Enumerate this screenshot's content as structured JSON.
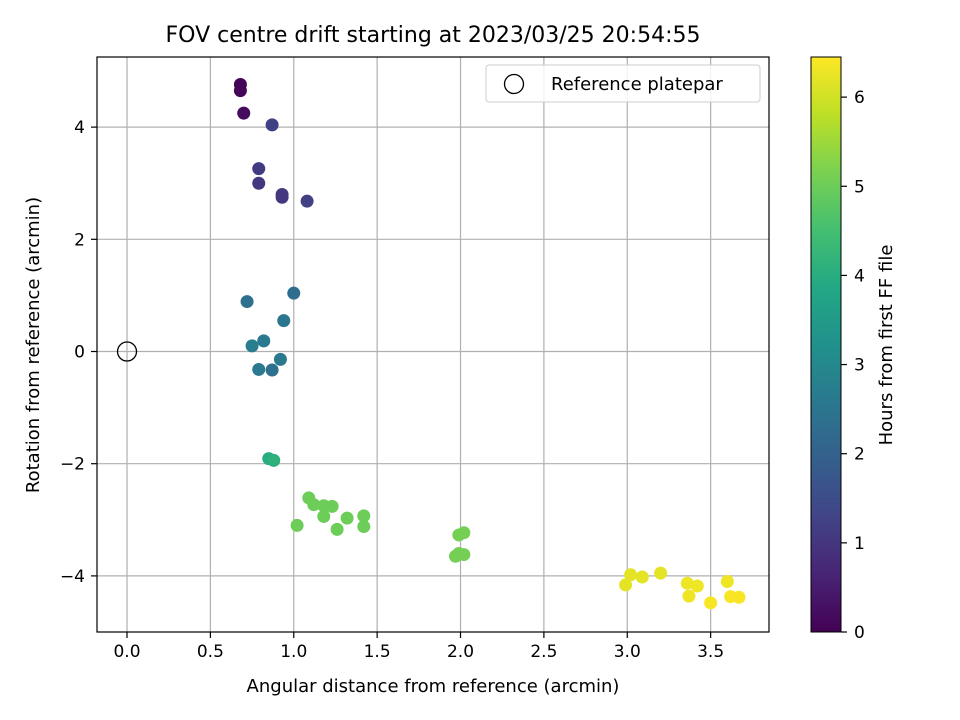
{
  "chart_data": {
    "type": "scatter",
    "title": "FOV centre drift starting at 2023/03/25 20:54:55",
    "xlabel": "Angular distance from reference (arcmin)",
    "ylabel": "Rotation from reference (arcmin)",
    "xlim": [
      -0.18,
      3.85
    ],
    "ylim": [
      -5.0,
      5.25
    ],
    "xticks": [
      "0.0",
      "0.5",
      "1.0",
      "1.5",
      "2.0",
      "2.5",
      "3.0",
      "3.5"
    ],
    "yticks": [
      "−4",
      "−2",
      "0",
      "2",
      "4"
    ],
    "grid": true,
    "legend_position": "top-right",
    "reference": {
      "label": "Reference platepar",
      "x": 0.0,
      "y": 0.0
    },
    "colorbar": {
      "label": "Hours from first FF file",
      "range": [
        0,
        6.45
      ],
      "ticks": [
        "0",
        "1",
        "2",
        "3",
        "4",
        "5",
        "6"
      ],
      "colormap": "viridis"
    },
    "points": [
      {
        "x": 0.68,
        "y": 4.76,
        "h": 0.05
      },
      {
        "x": 0.68,
        "y": 4.65,
        "h": 0.1
      },
      {
        "x": 0.7,
        "y": 4.25,
        "h": 0.2
      },
      {
        "x": 0.87,
        "y": 4.04,
        "h": 1.2
      },
      {
        "x": 0.79,
        "y": 3.26,
        "h": 1.1
      },
      {
        "x": 0.79,
        "y": 3.0,
        "h": 1.0
      },
      {
        "x": 0.93,
        "y": 2.8,
        "h": 1.1
      },
      {
        "x": 0.93,
        "y": 2.75,
        "h": 1.0
      },
      {
        "x": 1.08,
        "y": 2.68,
        "h": 1.2
      },
      {
        "x": 0.72,
        "y": 0.89,
        "h": 2.4
      },
      {
        "x": 1.0,
        "y": 1.04,
        "h": 2.3
      },
      {
        "x": 0.94,
        "y": 0.55,
        "h": 2.5
      },
      {
        "x": 0.82,
        "y": 0.19,
        "h": 2.6
      },
      {
        "x": 0.75,
        "y": 0.1,
        "h": 2.7
      },
      {
        "x": 0.92,
        "y": -0.14,
        "h": 2.6
      },
      {
        "x": 0.79,
        "y": -0.32,
        "h": 2.6
      },
      {
        "x": 0.87,
        "y": -0.33,
        "h": 2.4
      },
      {
        "x": 0.85,
        "y": -1.91,
        "h": 4.0
      },
      {
        "x": 0.88,
        "y": -1.94,
        "h": 4.1
      },
      {
        "x": 1.09,
        "y": -2.61,
        "h": 5.0
      },
      {
        "x": 1.12,
        "y": -2.73,
        "h": 5.0
      },
      {
        "x": 1.18,
        "y": -2.75,
        "h": 5.0
      },
      {
        "x": 1.23,
        "y": -2.76,
        "h": 5.0
      },
      {
        "x": 1.18,
        "y": -2.94,
        "h": 5.0
      },
      {
        "x": 1.32,
        "y": -2.97,
        "h": 5.0
      },
      {
        "x": 1.42,
        "y": -2.93,
        "h": 5.0
      },
      {
        "x": 1.02,
        "y": -3.1,
        "h": 5.0
      },
      {
        "x": 1.26,
        "y": -3.17,
        "h": 5.0
      },
      {
        "x": 1.42,
        "y": -3.12,
        "h": 5.0
      },
      {
        "x": 2.02,
        "y": -3.23,
        "h": 5.1
      },
      {
        "x": 1.99,
        "y": -3.27,
        "h": 5.1
      },
      {
        "x": 1.99,
        "y": -3.6,
        "h": 5.1
      },
      {
        "x": 2.02,
        "y": -3.62,
        "h": 5.1
      },
      {
        "x": 1.97,
        "y": -3.65,
        "h": 5.1
      },
      {
        "x": 3.2,
        "y": -3.95,
        "h": 6.2
      },
      {
        "x": 3.02,
        "y": -3.98,
        "h": 6.2
      },
      {
        "x": 3.09,
        "y": -4.02,
        "h": 6.2
      },
      {
        "x": 3.6,
        "y": -4.1,
        "h": 6.3
      },
      {
        "x": 3.36,
        "y": -4.13,
        "h": 6.3
      },
      {
        "x": 3.42,
        "y": -4.18,
        "h": 6.3
      },
      {
        "x": 2.99,
        "y": -4.16,
        "h": 6.2
      },
      {
        "x": 3.37,
        "y": -4.36,
        "h": 6.3
      },
      {
        "x": 3.62,
        "y": -4.37,
        "h": 6.4
      },
      {
        "x": 3.67,
        "y": -4.38,
        "h": 6.4
      },
      {
        "x": 3.5,
        "y": -4.48,
        "h": 6.4
      }
    ]
  }
}
